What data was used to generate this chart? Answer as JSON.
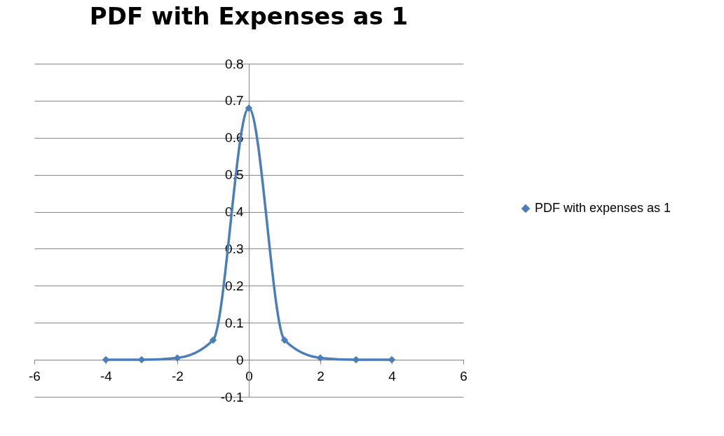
{
  "chart_data": {
    "type": "line",
    "title": "PDF with Expenses as 1",
    "x": [
      -4,
      -3,
      -2,
      -1,
      0,
      1,
      2,
      3,
      4
    ],
    "series": [
      {
        "name": "PDF with expenses as 1",
        "color": "#4a7ebb",
        "values": [
          0,
          0,
          0.005,
          0.053,
          0.68,
          0.053,
          0.005,
          0,
          0
        ]
      }
    ],
    "xlim": [
      -6,
      6
    ],
    "xticks": [
      -6,
      -4,
      -2,
      0,
      2,
      4,
      6
    ],
    "ylim": [
      -0.1,
      0.8
    ],
    "yticks": [
      -0.1,
      0,
      0.1,
      0.2,
      0.3,
      0.4,
      0.5,
      0.6,
      0.7,
      0.8
    ],
    "grid": "y",
    "legend": "right",
    "marker": "diamond",
    "line_style": "solid"
  }
}
